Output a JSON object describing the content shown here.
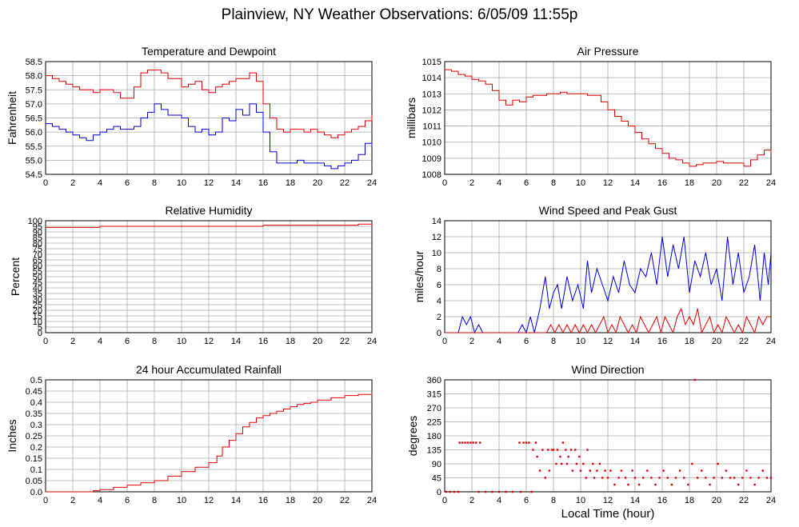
{
  "page": {
    "title": "Plainview, NY Weather Observations: 6/05/09 11:55p",
    "xlabel": "Local Time (hour)"
  },
  "colors": {
    "red": "#e00000",
    "blue": "#0000e0",
    "grid": "#aaaaaa"
  },
  "chart_data": [
    {
      "id": "temp",
      "type": "line",
      "title": "Temperature and Dewpoint",
      "ylabel": "Fahrenheit",
      "xlim": [
        0,
        24
      ],
      "ylim": [
        54.5,
        58.5
      ],
      "xticks": [
        "0",
        "2",
        "4",
        "6",
        "8",
        "10",
        "12",
        "14",
        "16",
        "18",
        "20",
        "22",
        "24"
      ],
      "yticks": [
        "54.5",
        "55.0",
        "55.5",
        "56.0",
        "56.5",
        "57.0",
        "57.5",
        "58.0",
        "58.5"
      ],
      "grid": true,
      "series": [
        {
          "color": "red",
          "step": true,
          "x": [
            0,
            0.5,
            1,
            1.5,
            2,
            2.5,
            3,
            3.5,
            4,
            4.5,
            5,
            5.5,
            6,
            6.5,
            7,
            7.5,
            8,
            8.5,
            9,
            9.5,
            10,
            10.5,
            11,
            11.5,
            12,
            12.5,
            13,
            13.5,
            14,
            14.5,
            15,
            15.5,
            16,
            16.5,
            17,
            17.5,
            18,
            18.5,
            19,
            19.5,
            20,
            20.5,
            21,
            21.5,
            22,
            22.5,
            23,
            23.5,
            24
          ],
          "y": [
            58.0,
            57.9,
            57.8,
            57.7,
            57.6,
            57.5,
            57.5,
            57.4,
            57.5,
            57.5,
            57.4,
            57.2,
            57.2,
            57.6,
            58.1,
            58.2,
            58.2,
            58.1,
            57.9,
            57.9,
            57.6,
            57.7,
            57.8,
            57.5,
            57.4,
            57.6,
            57.7,
            57.8,
            57.9,
            57.9,
            58.1,
            57.8,
            57.0,
            56.5,
            56.1,
            56.0,
            56.1,
            56.1,
            56.0,
            56.1,
            56.0,
            55.9,
            55.8,
            55.9,
            56.0,
            56.1,
            56.2,
            56.4,
            56.6
          ]
        },
        {
          "color": "blue",
          "step": true,
          "x": [
            0,
            0.5,
            1,
            1.5,
            2,
            2.5,
            3,
            3.5,
            4,
            4.5,
            5,
            5.5,
            6,
            6.5,
            7,
            7.5,
            8,
            8.5,
            9,
            9.5,
            10,
            10.5,
            11,
            11.5,
            12,
            12.5,
            13,
            13.5,
            14,
            14.5,
            15,
            15.5,
            16,
            16.5,
            17,
            17.5,
            18,
            18.5,
            19,
            19.5,
            20,
            20.5,
            21,
            21.5,
            22,
            22.5,
            23,
            23.5,
            24
          ],
          "y": [
            56.3,
            56.2,
            56.1,
            56.0,
            55.9,
            55.8,
            55.7,
            55.9,
            56.0,
            56.1,
            56.2,
            56.1,
            56.1,
            56.2,
            56.5,
            56.7,
            57.0,
            56.8,
            56.6,
            56.6,
            56.5,
            56.2,
            56.0,
            56.1,
            55.9,
            56.0,
            56.5,
            56.4,
            56.8,
            56.6,
            57.0,
            56.7,
            56.0,
            55.3,
            54.9,
            54.9,
            54.9,
            55.0,
            54.9,
            54.9,
            54.9,
            54.8,
            54.7,
            54.8,
            54.9,
            55.0,
            55.2,
            55.6,
            55.5
          ]
        }
      ]
    },
    {
      "id": "pressure",
      "type": "line",
      "title": "Air Pressure",
      "ylabel": "millibars",
      "xlim": [
        0,
        24
      ],
      "ylim": [
        1008,
        1015
      ],
      "xticks": [
        "0",
        "2",
        "4",
        "6",
        "8",
        "10",
        "12",
        "14",
        "16",
        "18",
        "20",
        "22",
        "24"
      ],
      "yticks": [
        "1008",
        "1009",
        "1010",
        "1011",
        "1012",
        "1013",
        "1014",
        "1015"
      ],
      "grid": true,
      "series": [
        {
          "color": "red",
          "step": true,
          "x": [
            0,
            0.5,
            1,
            1.5,
            2,
            2.5,
            3,
            3.5,
            4,
            4.5,
            5,
            5.5,
            6,
            6.5,
            7,
            7.5,
            8,
            8.5,
            9,
            9.5,
            10,
            10.5,
            11,
            11.5,
            12,
            12.5,
            13,
            13.5,
            14,
            14.5,
            15,
            15.5,
            16,
            16.5,
            17,
            17.5,
            18,
            18.5,
            19,
            19.5,
            20,
            20.5,
            21,
            21.5,
            22,
            22.5,
            23,
            23.5,
            24
          ],
          "y": [
            1014.5,
            1014.4,
            1014.2,
            1014.1,
            1013.9,
            1013.8,
            1013.6,
            1013.2,
            1012.6,
            1012.3,
            1012.6,
            1012.5,
            1012.8,
            1012.9,
            1012.9,
            1013.0,
            1013.0,
            1013.1,
            1013.0,
            1013.0,
            1013.0,
            1012.9,
            1012.9,
            1012.5,
            1012.0,
            1011.6,
            1011.3,
            1011.0,
            1010.6,
            1010.2,
            1009.9,
            1009.6,
            1009.3,
            1009.0,
            1008.9,
            1008.7,
            1008.5,
            1008.6,
            1008.7,
            1008.7,
            1008.8,
            1008.7,
            1008.7,
            1008.7,
            1008.5,
            1008.9,
            1009.2,
            1009.5,
            1009.3
          ]
        }
      ]
    },
    {
      "id": "humidity",
      "type": "line",
      "title": "Relative Humidity",
      "ylabel": "Percent",
      "xlim": [
        0,
        24
      ],
      "ylim": [
        0,
        100
      ],
      "xticks": [
        "0",
        "2",
        "4",
        "6",
        "8",
        "10",
        "12",
        "14",
        "16",
        "18",
        "20",
        "22",
        "24"
      ],
      "yticks": [
        "0",
        "5",
        "10",
        "15",
        "20",
        "25",
        "30",
        "35",
        "40",
        "45",
        "50",
        "55",
        "60",
        "65",
        "70",
        "75",
        "80",
        "85",
        "90",
        "95",
        "100"
      ],
      "grid": true,
      "series": [
        {
          "color": "red",
          "step": true,
          "x": [
            0,
            2,
            4,
            6,
            8,
            10,
            12,
            14,
            16,
            18,
            20,
            22,
            23,
            24
          ],
          "y": [
            94,
            94,
            95,
            95,
            95,
            95,
            95,
            95,
            96,
            96,
            96,
            96,
            97,
            96
          ]
        }
      ]
    },
    {
      "id": "wind",
      "type": "line",
      "title": "Wind Speed and Peak Gust",
      "ylabel": "miles/hour",
      "xlim": [
        0,
        24
      ],
      "ylim": [
        0,
        14
      ],
      "xticks": [
        "0",
        "2",
        "4",
        "6",
        "8",
        "10",
        "12",
        "14",
        "16",
        "18",
        "20",
        "22",
        "24"
      ],
      "yticks": [
        "0",
        "2",
        "4",
        "6",
        "8",
        "10",
        "12",
        "14"
      ],
      "grid": true,
      "series": [
        {
          "color": "blue",
          "step": false,
          "x": [
            0,
            1.0,
            1.3,
            1.6,
            1.9,
            2.2,
            2.5,
            2.8,
            5.4,
            5.7,
            6.0,
            6.3,
            6.6,
            7.0,
            7.4,
            7.7,
            8.0,
            8.3,
            8.6,
            9.0,
            9.4,
            9.8,
            10.2,
            10.5,
            10.8,
            11.2,
            11.6,
            12.0,
            12.4,
            12.8,
            13.2,
            13.6,
            14.0,
            14.4,
            14.8,
            15.2,
            15.6,
            16.0,
            16.4,
            16.8,
            17.2,
            17.6,
            18.0,
            18.4,
            18.8,
            19.2,
            19.6,
            20.0,
            20.4,
            20.8,
            21.2,
            21.6,
            22.0,
            22.4,
            22.8,
            23.2,
            23.5,
            23.8,
            24
          ],
          "y": [
            0,
            0,
            2,
            1,
            2,
            0,
            1,
            0,
            0,
            1,
            0,
            2,
            0,
            3,
            7,
            3,
            5,
            6,
            3,
            7,
            4,
            6,
            3,
            9,
            5,
            8,
            6,
            4,
            7,
            5,
            9,
            6,
            5,
            8,
            7,
            10,
            6,
            12,
            7,
            11,
            8,
            12,
            5,
            9,
            7,
            10,
            6,
            8,
            4,
            12,
            6,
            10,
            5,
            7,
            11,
            4,
            10,
            6,
            10
          ]
        },
        {
          "color": "red",
          "step": false,
          "x": [
            0,
            7.5,
            7.8,
            8.1,
            8.4,
            8.7,
            9.0,
            9.3,
            9.6,
            9.9,
            10.2,
            10.5,
            10.8,
            11.1,
            11.4,
            11.7,
            12.0,
            12.3,
            12.6,
            12.9,
            13.2,
            13.5,
            13.8,
            14.1,
            14.4,
            14.7,
            15.0,
            15.3,
            15.6,
            15.9,
            16.2,
            16.5,
            16.8,
            17.1,
            17.4,
            17.7,
            18.0,
            18.3,
            18.6,
            18.9,
            19.2,
            19.5,
            19.8,
            20.1,
            20.4,
            20.7,
            21.0,
            21.3,
            21.6,
            21.9,
            22.2,
            22.5,
            22.8,
            23.1,
            23.4,
            23.7,
            24
          ],
          "y": [
            0,
            0,
            1,
            0,
            1,
            0,
            1,
            0,
            1,
            0,
            1,
            0,
            1,
            0,
            1,
            2,
            0,
            1,
            0,
            2,
            1,
            0,
            1,
            0,
            2,
            1,
            0,
            1,
            2,
            0,
            2,
            1,
            0,
            2,
            3,
            1,
            2,
            1,
            3,
            0,
            1,
            2,
            0,
            1,
            0,
            2,
            1,
            0,
            1,
            0,
            2,
            1,
            0,
            2,
            1,
            2,
            2
          ]
        }
      ]
    },
    {
      "id": "rain",
      "type": "line",
      "title": "24 hour Accumulated Rainfall",
      "ylabel": "Inches",
      "xlim": [
        0,
        24
      ],
      "ylim": [
        0,
        0.5
      ],
      "xticks": [
        "0",
        "2",
        "4",
        "6",
        "8",
        "10",
        "12",
        "14",
        "16",
        "18",
        "20",
        "22",
        "24"
      ],
      "yticks": [
        "0.0",
        "0.05",
        "0.1",
        "0.15",
        "0.2",
        "0.25",
        "0.3",
        "0.35",
        "0.4",
        "0.45",
        "0.5"
      ],
      "grid": true,
      "series": [
        {
          "color": "red",
          "step": true,
          "x": [
            0,
            3.5,
            4,
            5,
            6,
            7,
            8,
            9,
            10,
            11,
            12,
            12.6,
            13,
            13.5,
            14,
            14.5,
            15,
            15.5,
            16,
            16.5,
            17,
            17.5,
            18,
            18.5,
            19,
            19.5,
            20,
            21,
            22,
            23,
            24
          ],
          "y": [
            0,
            0.005,
            0.01,
            0.02,
            0.03,
            0.04,
            0.05,
            0.07,
            0.09,
            0.11,
            0.13,
            0.16,
            0.2,
            0.23,
            0.26,
            0.29,
            0.31,
            0.33,
            0.34,
            0.35,
            0.36,
            0.37,
            0.38,
            0.39,
            0.395,
            0.4,
            0.41,
            0.42,
            0.43,
            0.435,
            0.44
          ]
        }
      ]
    },
    {
      "id": "direction",
      "type": "scatter",
      "title": "Wind Direction",
      "ylabel": "degrees",
      "xlim": [
        0,
        24
      ],
      "ylim": [
        0,
        360
      ],
      "xticks": [
        "0",
        "2",
        "4",
        "6",
        "8",
        "10",
        "12",
        "14",
        "16",
        "18",
        "20",
        "22",
        "24"
      ],
      "yticks": [
        "0",
        "45",
        "90",
        "135",
        "180",
        "225",
        "270",
        "315",
        "360"
      ],
      "grid": true,
      "series": [
        {
          "color": "red",
          "step": false,
          "x": [
            0.1,
            0.4,
            0.7,
            1.0,
            1.1,
            1.3,
            1.5,
            1.7,
            1.9,
            2.1,
            2.3,
            2.6,
            2.5,
            3.0,
            3.5,
            4.0,
            4.5,
            5.0,
            5.5,
            5.6,
            5.8,
            6.0,
            6.2,
            6.4,
            6.5,
            6.7,
            6.8,
            7.0,
            7.2,
            7.4,
            7.6,
            7.7,
            7.9,
            8.0,
            8.2,
            8.3,
            8.5,
            8.6,
            8.7,
            8.9,
            9.0,
            9.1,
            9.3,
            9.4,
            9.6,
            9.7,
            9.9,
            10.0,
            10.2,
            10.4,
            10.5,
            10.7,
            10.9,
            11.0,
            11.2,
            11.4,
            11.6,
            11.8,
            12.0,
            12.2,
            12.5,
            12.8,
            13.0,
            13.3,
            13.5,
            13.8,
            14.0,
            14.3,
            14.6,
            14.9,
            15.2,
            15.5,
            15.8,
            16.1,
            16.4,
            16.7,
            17.0,
            17.3,
            17.6,
            17.9,
            18.2,
            18.4,
            18.6,
            18.9,
            19.2,
            19.5,
            19.8,
            20.1,
            20.4,
            20.7,
            21.0,
            21.3,
            21.6,
            21.9,
            22.2,
            22.5,
            22.8,
            23.1,
            23.4,
            23.7,
            24.0
          ],
          "y": [
            0,
            0,
            0,
            0,
            158,
            158,
            158,
            158,
            158,
            158,
            158,
            158,
            0,
            0,
            0,
            0,
            0,
            0,
            158,
            0,
            158,
            158,
            158,
            0,
            135,
            158,
            113,
            68,
            135,
            45,
            135,
            68,
            135,
            135,
            90,
            135,
            113,
            90,
            158,
            135,
            90,
            113,
            135,
            68,
            135,
            90,
            113,
            68,
            90,
            45,
            135,
            68,
            90,
            45,
            68,
            90,
            45,
            68,
            45,
            68,
            23,
            45,
            68,
            45,
            23,
            68,
            45,
            23,
            45,
            68,
            45,
            23,
            45,
            68,
            45,
            23,
            45,
            68,
            45,
            23,
            90,
            360,
            45,
            68,
            45,
            23,
            45,
            90,
            45,
            68,
            45,
            45,
            23,
            45,
            68,
            45,
            23,
            45,
            68,
            45,
            45
          ]
        }
      ]
    }
  ]
}
